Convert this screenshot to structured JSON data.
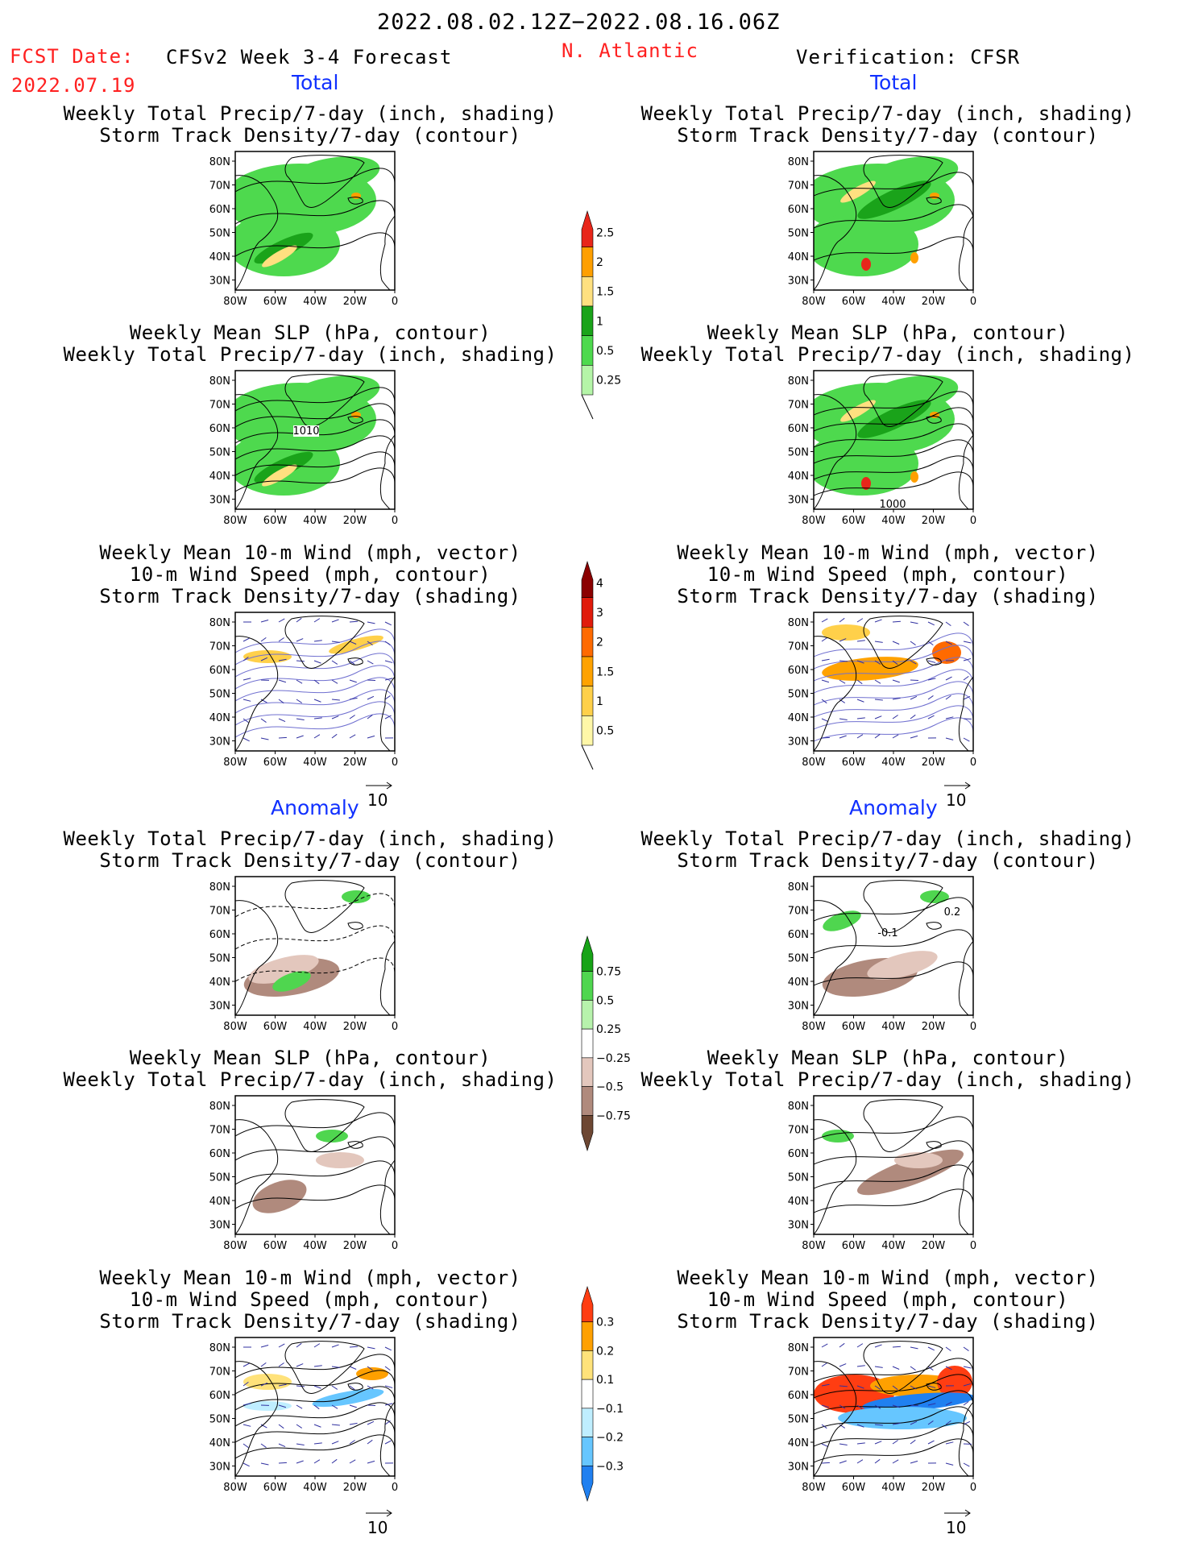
{
  "header": {
    "date_range": "2022.08.02.12Z−2022.08.16.06Z",
    "fcst_label": "FCST Date:",
    "fcst_date": "2022.07.19",
    "forecast_title": "CFSv2 Week 3-4 Forecast",
    "region": "N. Atlantic",
    "verification": "Verification: CFSR"
  },
  "sections": {
    "total": "Total",
    "anomaly": "Anomaly"
  },
  "titles": {
    "precip_track": [
      "Weekly Total Precip/7-day (inch, shading)",
      "Storm Track Density/7-day (contour)"
    ],
    "slp_precip": [
      "Weekly Mean SLP (hPa, contour)",
      "Weekly Total Precip/7-day (inch, shading)"
    ],
    "wind": [
      "Weekly Mean 10-m Wind (mph, vector)",
      "10-m Wind Speed (mph, contour)",
      "Storm Track Density/7-day (shading)"
    ]
  },
  "axes": {
    "lat_labels": [
      "80N",
      "70N",
      "60N",
      "50N",
      "40N",
      "30N"
    ],
    "lon_labels": [
      "80W",
      "60W",
      "40W",
      "20W",
      "0"
    ]
  },
  "vector_ref": "10",
  "contour_labels": {
    "slp_left": "1010",
    "slp_right": "1000",
    "anom_right_a": "0.2",
    "anom_right_b": "-0.1"
  },
  "colorbars": [
    {
      "id": "precip_total",
      "labels": [
        "2.5",
        "2",
        "1.5",
        "1",
        "0.5",
        "0.25"
      ],
      "colors": [
        "#e8261a",
        "#ff9f00",
        "#ffe080",
        "#1aa31a",
        "#4ed94e",
        "#b5f5a8"
      ]
    },
    {
      "id": "track_total",
      "labels": [
        "4",
        "3",
        "2",
        "1.5",
        "1",
        "0.5"
      ],
      "colors": [
        "#8b0000",
        "#e01b0b",
        "#ff6a00",
        "#ffa200",
        "#ffd04a",
        "#fff7a8"
      ]
    },
    {
      "id": "precip_anom",
      "labels": [
        "0.75",
        "0.5",
        "0.25",
        "−0.25",
        "−0.5",
        "−0.75"
      ],
      "colors": [
        "#17a317",
        "#4fd64f",
        "#b7f2ac",
        "#ffffff",
        "#e3c7bd",
        "#b08a7d",
        "#6d4733"
      ]
    },
    {
      "id": "track_anom",
      "labels": [
        "0.3",
        "0.2",
        "0.1",
        "−0.1",
        "−0.2",
        "−0.3"
      ],
      "colors": [
        "#ff3d12",
        "#ffa000",
        "#ffe27a",
        "#ffffff",
        "#bfeeff",
        "#66c6ff",
        "#2080f0"
      ]
    }
  ],
  "colors": {
    "accent_red": "#ff2020",
    "accent_blue": "#1030ff"
  }
}
